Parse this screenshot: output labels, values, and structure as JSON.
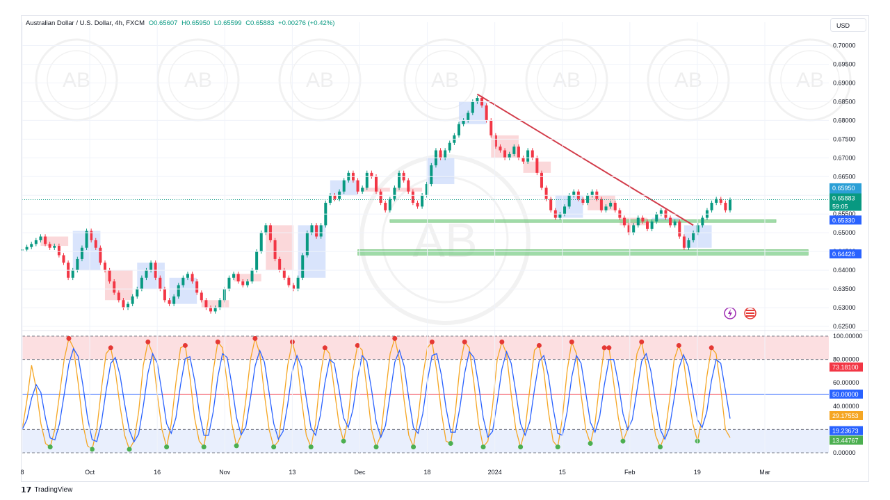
{
  "header": {
    "symbol": "Australian Dollar / U.S. Dollar, 4h, FXCM",
    "open": "O0.65607",
    "high": "H0.65950",
    "low": "L0.65599",
    "close": "C0.65883",
    "change": "+0.00276 (+0.42%)"
  },
  "currency_button": "USD",
  "footer": {
    "brand": "TradingView"
  },
  "watermark": {
    "letters": "AB"
  },
  "colors": {
    "up": "#089981",
    "down": "#f23645",
    "trendline": "#d23c4a",
    "support_zone": "#7fcf8b",
    "fvg_up": "#c9d8fb",
    "fvg_down": "#f9c7cb",
    "stoch_k": "#2962ff",
    "stoch_d": "#f5a623",
    "overbought": "#e53935",
    "oversold": "#4caf50"
  },
  "chart_data": [
    {
      "type": "candlestick",
      "ylim": [
        0.625,
        0.7025
      ],
      "price_ticks": [
        "0.70000",
        "0.69500",
        "0.69000",
        "0.68500",
        "0.68000",
        "0.67500",
        "0.67000",
        "0.66500",
        "0.66000",
        "0.65500",
        "0.65000",
        "0.64500",
        "0.64000",
        "0.63500",
        "0.63000",
        "0.62500"
      ],
      "x_ticks": [
        "8",
        "Oct",
        "16",
        "Nov",
        "13",
        "Dec",
        "18",
        "2024",
        "15",
        "Feb",
        "19",
        "Mar"
      ],
      "last_price": 0.65883,
      "price_labels": [
        {
          "value": 0.6595,
          "text": "0.65950",
          "kind": "high"
        },
        {
          "value": 0.6595,
          "text": "0.65950",
          "kind": "last-high"
        },
        {
          "value": 0.65883,
          "text": "0.65883",
          "kind": "last"
        },
        {
          "value": 0.65883,
          "text": "59:05",
          "kind": "countdown"
        },
        {
          "value": 0.6533,
          "text": "0.65330",
          "kind": "level"
        },
        {
          "value": 0.64426,
          "text": "0.64426",
          "kind": "level"
        }
      ],
      "series_close": [
        0.6455,
        0.6462,
        0.647,
        0.648,
        0.649,
        0.647,
        0.646,
        0.6465,
        0.644,
        0.642,
        0.638,
        0.64,
        0.643,
        0.646,
        0.6505,
        0.648,
        0.646,
        0.642,
        0.64,
        0.637,
        0.634,
        0.632,
        0.63,
        0.631,
        0.633,
        0.635,
        0.638,
        0.64,
        0.642,
        0.638,
        0.635,
        0.632,
        0.631,
        0.633,
        0.636,
        0.638,
        0.639,
        0.637,
        0.634,
        0.632,
        0.63,
        0.629,
        0.63,
        0.632,
        0.635,
        0.638,
        0.639,
        0.637,
        0.636,
        0.637,
        0.64,
        0.645,
        0.65,
        0.652,
        0.648,
        0.643,
        0.64,
        0.638,
        0.636,
        0.635,
        0.638,
        0.644,
        0.65,
        0.652,
        0.649,
        0.652,
        0.658,
        0.66,
        0.659,
        0.661,
        0.664,
        0.666,
        0.664,
        0.661,
        0.662,
        0.666,
        0.665,
        0.661,
        0.658,
        0.656,
        0.659,
        0.662,
        0.666,
        0.664,
        0.661,
        0.658,
        0.657,
        0.66,
        0.663,
        0.668,
        0.672,
        0.67,
        0.672,
        0.674,
        0.676,
        0.679,
        0.68,
        0.682,
        0.685,
        0.686,
        0.684,
        0.68,
        0.676,
        0.673,
        0.672,
        0.67,
        0.671,
        0.673,
        0.67,
        0.669,
        0.672,
        0.67,
        0.666,
        0.662,
        0.659,
        0.656,
        0.654,
        0.655,
        0.657,
        0.66,
        0.661,
        0.659,
        0.658,
        0.66,
        0.661,
        0.659,
        0.656,
        0.657,
        0.658,
        0.656,
        0.654,
        0.652,
        0.65,
        0.652,
        0.654,
        0.653,
        0.651,
        0.653,
        0.655,
        0.656,
        0.654,
        0.652,
        0.653,
        0.649,
        0.646,
        0.648,
        0.65,
        0.652,
        0.654,
        0.656,
        0.658,
        0.659,
        0.658,
        0.656,
        0.6588
      ],
      "support_zones": [
        {
          "y0": 0.6528,
          "y1": 0.6535,
          "x_start_index": 80,
          "x_end_index": 164
        },
        {
          "y0": 0.644,
          "y1": 0.6455,
          "x_start_index": 73,
          "x_end_index": 171
        }
      ],
      "trendline": {
        "from": {
          "index": 99,
          "price": 0.687
        },
        "to": {
          "index": 146,
          "price": 0.652
        }
      }
    },
    {
      "type": "line",
      "name": "Stochastic",
      "ylim": [
        0,
        100
      ],
      "ticks": [
        "100.00000",
        "80.00000",
        "60.00000",
        "40.00000",
        "20.00000",
        "0.00000"
      ],
      "levels": [
        100,
        80,
        50,
        20,
        0
      ],
      "last_values": [
        {
          "value": 73.181,
          "text": "73.18100"
        },
        {
          "value": 50.0,
          "text": "50.00000"
        },
        {
          "value": 29.17553,
          "text": "29.17553"
        },
        {
          "value": 19.23673,
          "text": "19.23673"
        },
        {
          "value": 13.44767,
          "text": "13.44767"
        }
      ],
      "k_values": [
        20,
        45,
        75,
        55,
        25,
        8,
        5,
        20,
        50,
        80,
        98,
        90,
        60,
        25,
        6,
        3,
        20,
        55,
        85,
        90,
        70,
        40,
        15,
        3,
        10,
        35,
        75,
        95,
        85,
        50,
        20,
        5,
        25,
        60,
        90,
        92,
        65,
        30,
        10,
        5,
        30,
        70,
        95,
        90,
        60,
        25,
        6,
        15,
        45,
        80,
        98,
        85,
        50,
        20,
        5,
        10,
        40,
        75,
        95,
        80,
        45,
        15,
        5,
        25,
        65,
        90,
        85,
        55,
        25,
        10,
        30,
        70,
        92,
        88,
        55,
        20,
        5,
        15,
        50,
        85,
        98,
        80,
        45,
        15,
        5,
        30,
        65,
        90,
        95,
        70,
        35,
        10,
        8,
        35,
        75,
        95,
        90,
        60,
        25,
        5,
        10,
        40,
        80,
        95,
        85,
        50,
        20,
        5,
        20,
        55,
        88,
        92,
        70,
        35,
        10,
        5,
        30,
        70,
        95,
        85,
        50,
        20,
        8,
        25,
        60,
        90,
        90,
        60,
        30,
        10,
        20,
        55,
        85,
        95,
        75,
        40,
        15,
        5,
        15,
        45,
        80,
        92,
        80,
        50,
        25,
        10,
        30,
        65,
        90,
        85,
        55,
        20,
        13
      ]
    }
  ]
}
